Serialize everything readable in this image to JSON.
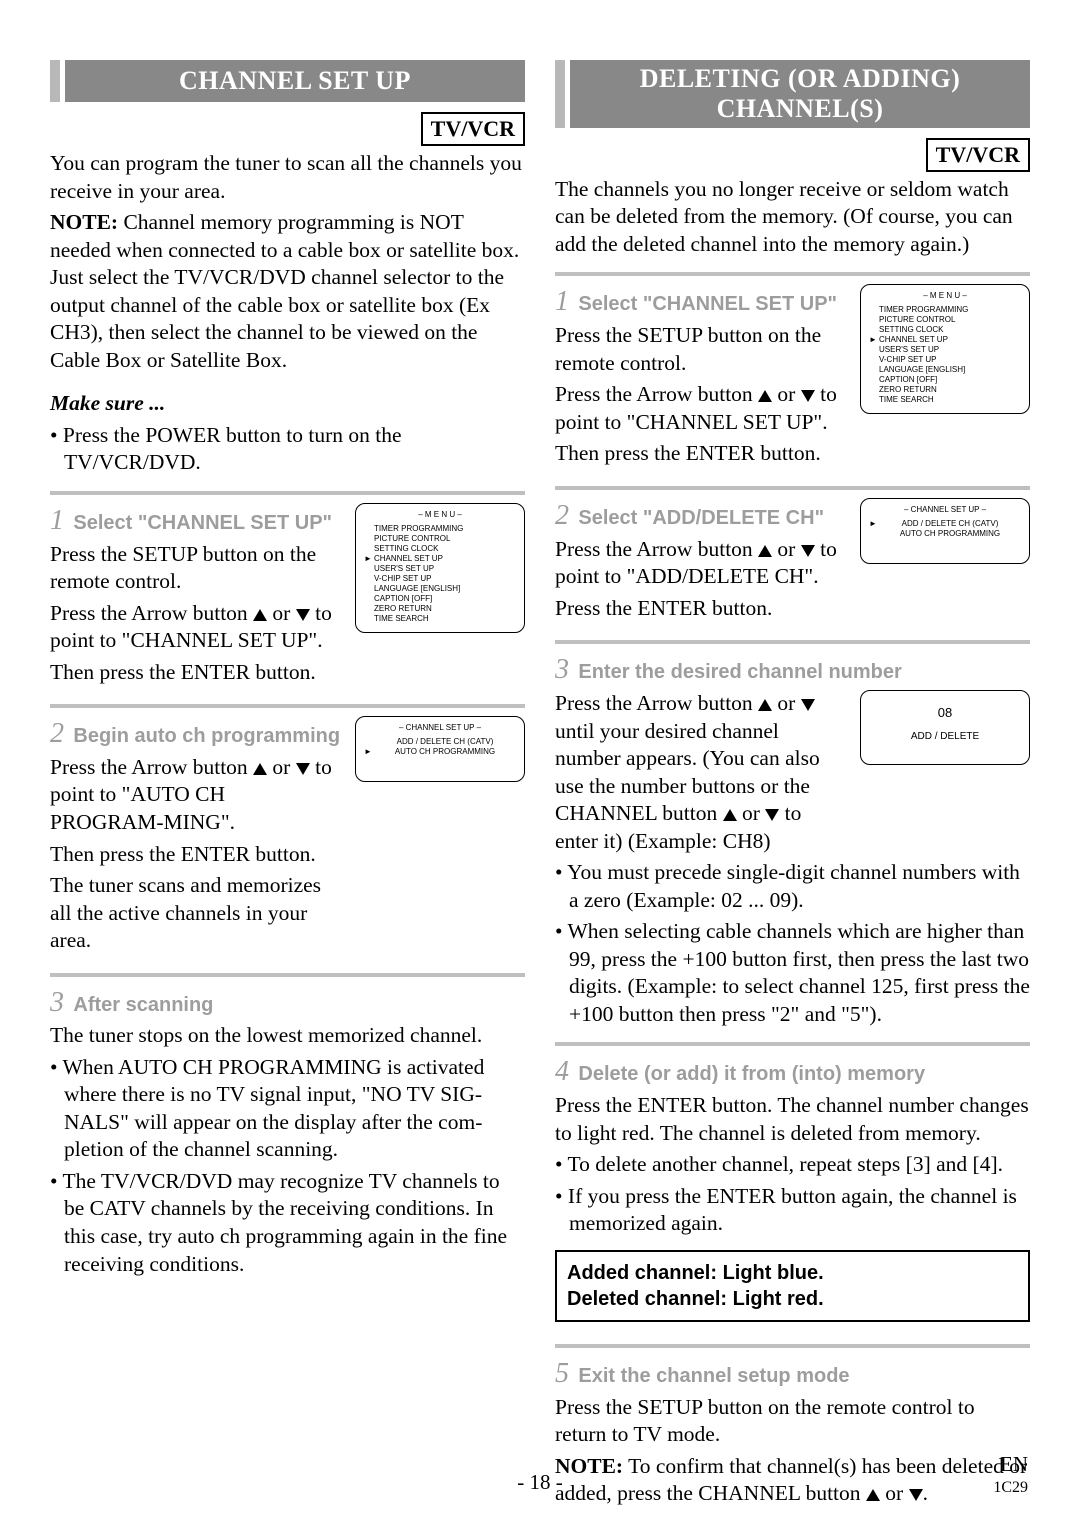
{
  "left": {
    "title": "CHANNEL SET UP",
    "badge": "TV/VCR",
    "intro": "You can program the tuner to scan all the channels you receive in your area.",
    "note_label": "NOTE:",
    "note_body": " Channel memory programming is NOT needed when connected to a cable box or satellite box. Just select the TV/VCR/DVD channel selector to the output channel of the cable box or satellite box (Ex CH3), then select the channel to be viewed on the Cable Box or Satellite Box.",
    "make_sure": "Make sure ...",
    "make_sure_item": "Press the POWER button to turn on the TV/VCR/DVD.",
    "step1": {
      "num": "1",
      "label": "Select \"CHANNEL SET UP\"",
      "p1": "Press the SETUP button on the remote control.",
      "p2a": "Press the Arrow button ",
      "p2b": " or ",
      "p2c": " to point to \"CHANNEL SET UP\".",
      "p3": "Then press the ENTER button."
    },
    "step2": {
      "num": "2",
      "label": "Begin auto ch programming",
      "p1a": "Press the Arrow button ",
      "p1b": " or ",
      "p1c": " to point to \"AUTO CH PROGRAM-MING\".",
      "p2": "Then press the ENTER button.",
      "p3": "The tuner scans and memorizes all the active channels in your area."
    },
    "step3": {
      "num": "3",
      "label": "After scanning",
      "p1": "The tuner stops on the lowest memorized channel.",
      "b1": "When AUTO CH PROGRAMMING is activated where there is no TV signal input, \"NO TV SIG-NALS\" will appear on the display after the com-pletion of the channel scanning.",
      "b2": "The TV/VCR/DVD may recognize TV channels to be CATV channels by the receiving conditions. In this case, try auto ch programming again in the fine receiving conditions."
    },
    "osd_menu": {
      "title": "– M E N U –",
      "items": [
        "TIMER PROGRAMMING",
        "PICTURE CONTROL",
        "SETTING CLOCK",
        "CHANNEL SET UP",
        "USER'S SET UP",
        "V-CHIP SET UP",
        "LANGUAGE   [ENGLISH]",
        "CAPTION   [OFF]",
        "ZERO RETURN",
        "TIME SEARCH"
      ],
      "pointer_index": 3
    },
    "osd_ch": {
      "title": "– CHANNEL SET UP –",
      "items": [
        "ADD / DELETE CH (CATV)",
        "AUTO CH PROGRAMMING"
      ],
      "pointer_index": 1
    }
  },
  "right": {
    "title": "DELETING (OR ADDING) CHANNEL(S)",
    "badge": "TV/VCR",
    "intro": "The channels you no longer receive or seldom watch can be deleted from the memory. (Of course, you can add the deleted channel into the memory again.)",
    "step1": {
      "num": "1",
      "label": "Select \"CHANNEL SET UP\"",
      "p1": "Press the SETUP button on the remote control.",
      "p2a": "Press the Arrow button ",
      "p2b": " or ",
      "p2c": " to point to \"CHANNEL SET UP\".",
      "p3": "Then press the ENTER button."
    },
    "step2": {
      "num": "2",
      "label": "Select \"ADD/DELETE CH\"",
      "p1a": "Press the Arrow button ",
      "p1b": " or ",
      "p1c": " to point to \"ADD/DELETE CH\".",
      "p2": "Press the ENTER button."
    },
    "step3": {
      "num": "3",
      "label": "Enter the desired channel number",
      "p1a": "Press the Arrow button ",
      "p1b": " or ",
      "p1c": " until your desired channel number appears. (You can also use the number buttons or the CHANNEL button ",
      "p1d": " or ",
      "p1e": " to enter it) (Example: CH8)",
      "b1": "You must precede single-digit channel numbers with a zero (Example: 02 ...  09).",
      "b2": "When selecting cable channels which are higher than 99, press the +100 button first, then press the last two digits. (Example: to select channel 125, first press the +100 button then press \"2\" and \"5\")."
    },
    "step4": {
      "num": "4",
      "label": "Delete (or add) it from (into) memory",
      "p1": "Press the ENTER button. The channel number changes to light red. The channel is deleted from memory.",
      "b1": "To delete another channel, repeat steps [3] and [4].",
      "b2": "If you press the ENTER button again, the channel is memorized again."
    },
    "notebox": "Added channel: Light blue.\nDeleted channel: Light red.",
    "step5": {
      "num": "5",
      "label": "Exit the channel setup mode",
      "p1": "Press the SETUP button on the remote control to return to TV mode.",
      "p2_label": "NOTE:",
      "p2a": " To confirm that channel(s) has been deleted or added, press the CHANNEL button ",
      "p2b": " or ",
      "p2c": "."
    },
    "osd_menu": {
      "title": "– M E N U –",
      "items": [
        "TIMER PROGRAMMING",
        "PICTURE CONTROL",
        "SETTING CLOCK",
        "CHANNEL SET UP",
        "USER'S SET UP",
        "V-CHIP SET UP",
        "LANGUAGE   [ENGLISH]",
        "CAPTION   [OFF]",
        "ZERO RETURN",
        "TIME SEARCH"
      ],
      "pointer_index": 3
    },
    "osd_ch": {
      "title": "– CHANNEL SET UP –",
      "items": [
        "ADD / DELETE CH (CATV)",
        "AUTO CH PROGRAMMING"
      ],
      "pointer_index": 0
    },
    "osd_num": {
      "ch": "08",
      "label": "ADD / DELETE"
    }
  },
  "footer": {
    "page": "- 18 -",
    "en": "EN",
    "code": "1C29"
  },
  "colors": {
    "title_bg": "#888888",
    "title_side": "#b8b8b8",
    "grey_text": "#9d9d9d",
    "rule": "#bfbfbf"
  }
}
